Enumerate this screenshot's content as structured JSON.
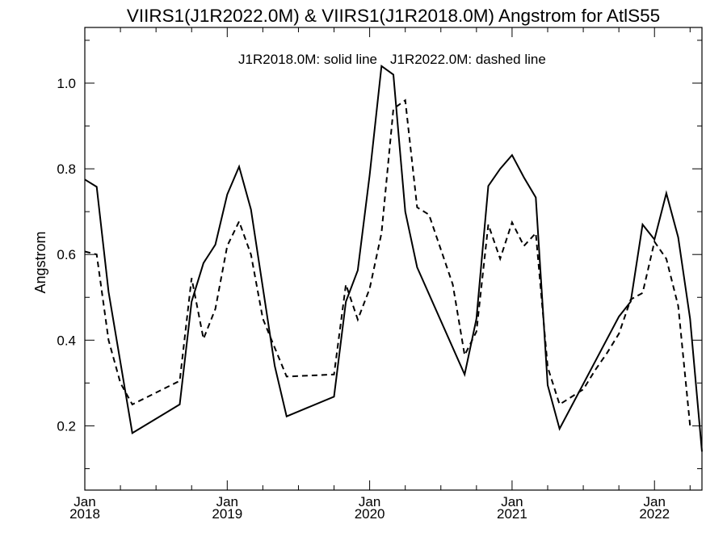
{
  "chart_data": {
    "type": "line",
    "title": "VIIRS1(J1R2022.0M) & VIIRS1(J1R2018.0M)  Angstrom for AtlS55",
    "annotation_left": "J1R2018.0M: solid line",
    "annotation_right": "J1R2022.0M: dashed line",
    "xlabel": "",
    "ylabel": "Angstrom",
    "xlim": [
      "2018-01",
      "2022-05"
    ],
    "ylim": [
      0.05,
      1.13
    ],
    "grid": false,
    "x_ticks": [
      {
        "month": "Jan",
        "year": "2018",
        "at": "2018-01"
      },
      {
        "month": "Jan",
        "year": "2019",
        "at": "2019-01"
      },
      {
        "month": "Jan",
        "year": "2020",
        "at": "2020-01"
      },
      {
        "month": "Jan",
        "year": "2021",
        "at": "2021-01"
      },
      {
        "month": "Jan",
        "year": "2022",
        "at": "2022-01"
      }
    ],
    "y_ticks": [
      "0.2",
      "0.4",
      "0.6",
      "0.8",
      "1.0"
    ],
    "series": [
      {
        "name": "J1R2018.0M",
        "style": "solid",
        "color": "#000000",
        "points": [
          [
            "2018-01",
            0.775
          ],
          [
            "2018-02",
            0.758
          ],
          [
            "2018-03",
            0.513
          ],
          [
            "2018-05",
            0.183
          ],
          [
            "2018-09",
            0.25
          ],
          [
            "2018-10",
            0.49
          ],
          [
            "2018-11",
            0.58
          ],
          [
            "2018-12",
            0.623
          ],
          [
            "2019-01",
            0.74
          ],
          [
            "2019-02",
            0.805
          ],
          [
            "2019-03",
            0.705
          ],
          [
            "2019-05",
            0.34
          ],
          [
            "2019-06",
            0.222
          ],
          [
            "2019-10",
            0.268
          ],
          [
            "2019-11",
            0.49
          ],
          [
            "2019-12",
            0.563
          ],
          [
            "2020-01",
            0.785
          ],
          [
            "2020-02",
            1.04
          ],
          [
            "2020-03",
            1.02
          ],
          [
            "2020-04",
            0.7
          ],
          [
            "2020-05",
            0.57
          ],
          [
            "2020-09",
            0.32
          ],
          [
            "2020-10",
            0.45
          ],
          [
            "2020-11",
            0.76
          ],
          [
            "2020-12",
            0.8
          ],
          [
            "2021-01",
            0.832
          ],
          [
            "2021-02",
            0.78
          ],
          [
            "2021-03",
            0.733
          ],
          [
            "2021-04",
            0.295
          ],
          [
            "2021-05",
            0.193
          ],
          [
            "2021-10",
            0.455
          ],
          [
            "2021-11",
            0.49
          ],
          [
            "2021-12",
            0.67
          ],
          [
            "2022-01",
            0.635
          ],
          [
            "2022-02",
            0.743
          ],
          [
            "2022-03",
            0.64
          ],
          [
            "2022-04",
            0.45
          ],
          [
            "2022-05",
            0.14
          ]
        ]
      },
      {
        "name": "J1R2022.0M",
        "style": "dashed",
        "color": "#000000",
        "points": [
          [
            "2018-01",
            0.607
          ],
          [
            "2018-02",
            0.6
          ],
          [
            "2018-03",
            0.4
          ],
          [
            "2018-04",
            0.3
          ],
          [
            "2018-05",
            0.25
          ],
          [
            "2018-09",
            0.305
          ],
          [
            "2018-10",
            0.545
          ],
          [
            "2018-11",
            0.403
          ],
          [
            "2018-12",
            0.473
          ],
          [
            "2019-01",
            0.62
          ],
          [
            "2019-02",
            0.677
          ],
          [
            "2019-03",
            0.6
          ],
          [
            "2019-04",
            0.45
          ],
          [
            "2019-06",
            0.315
          ],
          [
            "2019-10",
            0.32
          ],
          [
            "2019-11",
            0.53
          ],
          [
            "2019-12",
            0.448
          ],
          [
            "2020-01",
            0.52
          ],
          [
            "2020-02",
            0.65
          ],
          [
            "2020-03",
            0.94
          ],
          [
            "2020-04",
            0.96
          ],
          [
            "2020-05",
            0.71
          ],
          [
            "2020-06",
            0.693
          ],
          [
            "2020-08",
            0.53
          ],
          [
            "2020-09",
            0.365
          ],
          [
            "2020-10",
            0.42
          ],
          [
            "2020-11",
            0.67
          ],
          [
            "2020-12",
            0.59
          ],
          [
            "2021-01",
            0.675
          ],
          [
            "2021-02",
            0.62
          ],
          [
            "2021-03",
            0.65
          ],
          [
            "2021-04",
            0.337
          ],
          [
            "2021-05",
            0.25
          ],
          [
            "2021-07",
            0.285
          ],
          [
            "2021-08",
            0.33
          ],
          [
            "2021-09",
            0.37
          ],
          [
            "2021-10",
            0.415
          ],
          [
            "2021-11",
            0.495
          ],
          [
            "2021-12",
            0.51
          ],
          [
            "2022-01",
            0.63
          ],
          [
            "2022-02",
            0.59
          ],
          [
            "2022-03",
            0.48
          ],
          [
            "2022-04",
            0.2
          ]
        ]
      }
    ]
  }
}
